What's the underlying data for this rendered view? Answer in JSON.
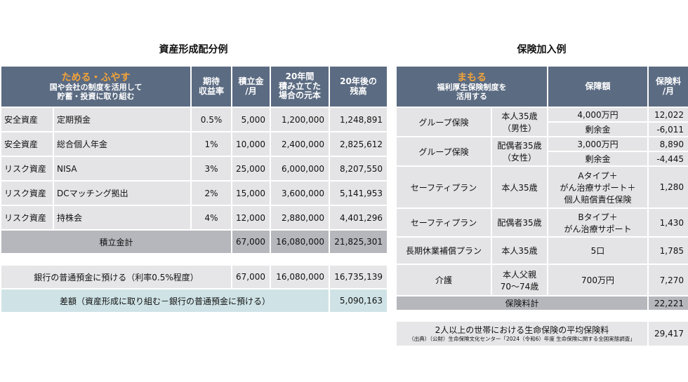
{
  "left": {
    "title": "資産形成配分例",
    "header": {
      "accent": "ためる・ふやす",
      "sub1": "国や会社の制度を活用して",
      "sub2": "貯蓄・投資に取り組む",
      "col_rate_1": "期待",
      "col_rate_2": "収益率",
      "col_monthly_1": "積立金",
      "col_monthly_2": "/月",
      "col_principal_1": "20年間",
      "col_principal_2": "積み立てた",
      "col_principal_3": "場合の元本",
      "col_balance_1": "20年後の",
      "col_balance_2": "残高"
    },
    "rows": [
      {
        "type": "安全資産",
        "name": "定期預金",
        "rate": "0.5%",
        "monthly": "5,000",
        "principal": "1,200,000",
        "balance": "1,248,891"
      },
      {
        "type": "安全資産",
        "name": "総合個人年金",
        "rate": "1%",
        "monthly": "10,000",
        "principal": "2,400,000",
        "balance": "2,825,612"
      },
      {
        "type": "リスク資産",
        "name": "NISA",
        "rate": "3%",
        "monthly": "25,000",
        "principal": "6,000,000",
        "balance": "8,207,550"
      },
      {
        "type": "リスク資産",
        "name": "DCマッチング拠出",
        "rate": "2%",
        "monthly": "15,000",
        "principal": "3,600,000",
        "balance": "5,141,953"
      },
      {
        "type": "リスク資産",
        "name": "持株会",
        "rate": "4%",
        "monthly": "12,000",
        "principal": "2,880,000",
        "balance": "4,401,296"
      }
    ],
    "total": {
      "label": "積立金計",
      "monthly": "67,000",
      "principal": "16,080,000",
      "balance": "21,825,301"
    },
    "bank": {
      "label": "銀行の普通預金に預ける（利率0.5%程度）",
      "monthly": "67,000",
      "principal": "16,080,000",
      "balance": "16,735,139"
    },
    "diff": {
      "label": "差額（資産形成に取り組む－銀行の普通預金に預ける）",
      "value": "5,090,163"
    }
  },
  "right": {
    "title": "保険加入例",
    "header": {
      "accent": "まもる",
      "sub1": "福利厚生保険制度を",
      "sub2": "活用する",
      "col_coverage": "保障額",
      "col_premium_1": "保険料",
      "col_premium_2": "/月"
    },
    "group1": {
      "plan": "グループ保険",
      "who_1": "本人35歳",
      "who_2": "（男性）",
      "cov_a": "4,000万円",
      "prem_a": "12,022",
      "cov_b": "剰余金",
      "prem_b": "-6,011"
    },
    "group2": {
      "plan": "グループ保険",
      "who_1": "配偶者35歳",
      "who_2": "（女性）",
      "cov_a": "3,000万円",
      "prem_a": "8,890",
      "cov_b": "剰余金",
      "prem_b": "-4,445"
    },
    "safety1": {
      "plan": "セーフティプラン",
      "who": "本人35歳",
      "cov_1": "Aタイプ＋",
      "cov_2": "がん治療サポート＋",
      "cov_3": "個人賠償責任保険",
      "prem": "1,280"
    },
    "safety2": {
      "plan": "セーフティプラン",
      "who": "配偶者35歳",
      "cov_1": "Bタイプ＋",
      "cov_2": "がん治療サポート",
      "prem": "1,430"
    },
    "ltd": {
      "plan": "長期休業補償プラン",
      "who": "本人35歳",
      "cov": "5口",
      "prem": "1,785"
    },
    "care": {
      "plan": "介護",
      "who_1": "本人父親",
      "who_2": "70～74歳",
      "cov": "700万円",
      "prem": "7,270"
    },
    "total": {
      "label": "保険料計",
      "value": "22,221"
    },
    "avg": {
      "label": "2人以上の世帯における生命保険の平均保険料",
      "source": "（出典）（公財）生命保険文化センター「2024（令和6）年度 生命保険に関する全国実態調査」",
      "value": "29,417"
    }
  },
  "colors": {
    "header": "#5b6b82",
    "accent": "#f2a43a",
    "row": "#e4e4e6",
    "total": "#b5b7bc",
    "diff": "#cfe3e6"
  }
}
